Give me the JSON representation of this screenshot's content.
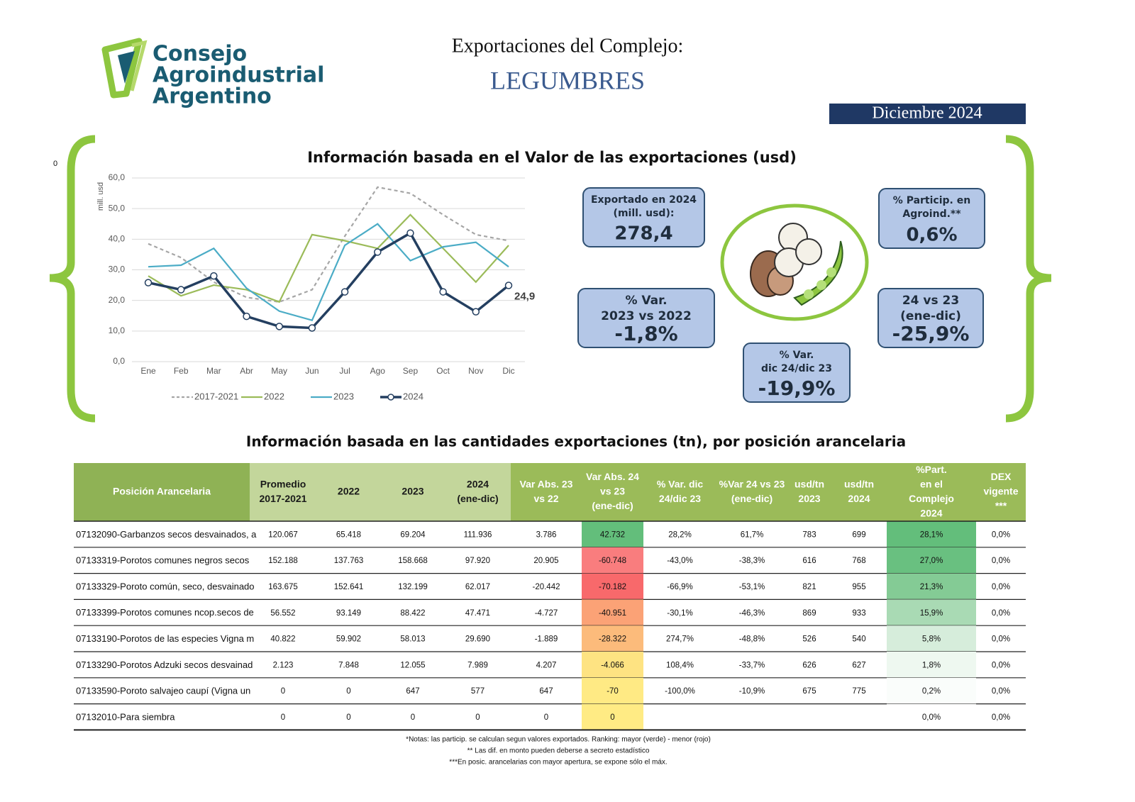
{
  "side_label": "0",
  "header": {
    "logo": [
      "Consejo",
      "Agroindustrial",
      "Argentino"
    ],
    "title": "Exportaciones del Complejo:",
    "subtitle": "LEGUMBRES",
    "date": "Diciembre 2024"
  },
  "chart_data": {
    "type": "line",
    "title": "Información basada en el Valor de las exportaciones (usd)",
    "y_label": "mill. usd",
    "categories": [
      "Ene",
      "Feb",
      "Mar",
      "Abr",
      "May",
      "Jun",
      "Jul",
      "Ago",
      "Sep",
      "Oct",
      "Nov",
      "Dic"
    ],
    "ylim": [
      0,
      60
    ],
    "yticks": [
      {
        "value": 0,
        "label": "0,0"
      },
      {
        "value": 10,
        "label": "10,0"
      },
      {
        "value": 20,
        "label": "20,0"
      },
      {
        "value": 30,
        "label": "30,0"
      },
      {
        "value": 40,
        "label": "40,0"
      },
      {
        "value": 50,
        "label": "50,0"
      },
      {
        "value": 60,
        "label": "60,0"
      }
    ],
    "grid": true,
    "legend": "bottom",
    "series": [
      {
        "name": "2017-2021",
        "color": "#a6a6a6",
        "dashed": true,
        "markers": false,
        "values": [
          38.5,
          34,
          26,
          21,
          19.5,
          23.5,
          41,
          57,
          55,
          48,
          41.5,
          39.5
        ]
      },
      {
        "name": "2022",
        "color": "#9bbb59",
        "dashed": false,
        "markers": false,
        "values": [
          28,
          21.5,
          25,
          23.5,
          19.5,
          41.5,
          39.5,
          37,
          48,
          37,
          26,
          38
        ]
      },
      {
        "name": "2023",
        "color": "#4bacc6",
        "dashed": false,
        "markers": false,
        "values": [
          31,
          31.5,
          37,
          24,
          16.5,
          13.5,
          38,
          45,
          33,
          37.5,
          39,
          31
        ]
      },
      {
        "name": "2024",
        "color": "#243f60",
        "dashed": false,
        "markers": true,
        "values": [
          25.8,
          23.5,
          28,
          14.8,
          11.5,
          11,
          22.8,
          35.8,
          42,
          22.8,
          16.3,
          24.9
        ],
        "value_labels": [
          null,
          null,
          null,
          null,
          null,
          null,
          null,
          null,
          null,
          null,
          null,
          "24,9"
        ]
      }
    ]
  },
  "kpis": [
    {
      "label": [
        "Exportado en 2024",
        "(mill. usd):"
      ],
      "value": "278,4"
    },
    {
      "label": [
        "% Particip. en",
        "Agroind.**"
      ],
      "value": "0,6%"
    },
    {
      "label": [
        "% Var.",
        "2023 vs 2022"
      ],
      "value": "-1,8%"
    },
    {
      "label": [
        "24 vs 23",
        "(ene-dic)"
      ],
      "value": "-25,9%"
    },
    {
      "label": [
        "% Var.",
        "dic 24/dic 23"
      ],
      "value": "-19,9%"
    }
  ],
  "table": {
    "title": "Información basada en las cantidades exportaciones (tn), por posición arancelaria",
    "headers": [
      [
        "Posición Arancelaria"
      ],
      [
        "Promedio",
        "2017-2021"
      ],
      [
        "2022"
      ],
      [
        "2023"
      ],
      [
        "2024",
        "(ene-dic)"
      ],
      [
        "Var Abs. 23",
        "vs 22"
      ],
      [
        "Var Abs. 24",
        "vs 23",
        "(ene-dic)"
      ],
      [
        "% Var. dic",
        "24/dic 23"
      ],
      [
        "%Var 24 vs 23",
        "(ene-dic)"
      ],
      [
        "usd/tn",
        "2023"
      ],
      [
        "usd/tn",
        "2024"
      ],
      [
        "%Part.",
        "en el",
        "Complejo",
        "2024"
      ],
      [
        "DEX",
        "vigente",
        "***"
      ]
    ],
    "rows": [
      [
        "07132090-Garbanzos secos desvainados, a",
        "120.067",
        "65.418",
        "69.204",
        "111.936",
        "3.786",
        "42.732",
        "28,2%",
        "61,7%",
        "783",
        "699",
        "28,1%",
        "0,0%"
      ],
      [
        "07133319-Porotos comunes negros secos",
        "152.188",
        "137.763",
        "158.668",
        "97.920",
        "20.905",
        "-60.748",
        "-43,0%",
        "-38,3%",
        "616",
        "768",
        "27,0%",
        "0,0%"
      ],
      [
        "07133329-Poroto común, seco, desvainado",
        "163.675",
        "152.641",
        "132.199",
        "62.017",
        "-20.442",
        "-70.182",
        "-66,9%",
        "-53,1%",
        "821",
        "955",
        "21,3%",
        "0,0%"
      ],
      [
        "07133399-Porotos comunes ncop.secos de",
        "56.552",
        "93.149",
        "88.422",
        "47.471",
        "-4.727",
        "-40.951",
        "-30,1%",
        "-46,3%",
        "869",
        "933",
        "15,9%",
        "0,0%"
      ],
      [
        "07133190-Porotos de las especies Vigna m",
        "40.822",
        "59.902",
        "58.013",
        "29.690",
        "-1.889",
        "-28.322",
        "274,7%",
        "-48,8%",
        "526",
        "540",
        "5,8%",
        "0,0%"
      ],
      [
        "07133290-Porotos Adzuki secos desvainad",
        "2.123",
        "7.848",
        "12.055",
        "7.989",
        "4.207",
        "-4.066",
        "108,4%",
        "-33,7%",
        "626",
        "627",
        "1,8%",
        "0,0%"
      ],
      [
        "07133590-Poroto salvajeo caupí (Vigna un",
        "0",
        "0",
        "647",
        "577",
        "647",
        "-70",
        "-100,0%",
        "-10,9%",
        "675",
        "775",
        "0,2%",
        "0,0%"
      ],
      [
        "07132010-Para siembra",
        "0",
        "0",
        "0",
        "0",
        "0",
        "0",
        null,
        null,
        null,
        null,
        "0,0%",
        "0,0%"
      ]
    ],
    "cell_colors": {
      "6": [
        "#63be7b",
        "#f97d7e",
        "#f8696b",
        "#fba276",
        "#fcbb7b",
        "#fee382",
        "#ffea84",
        "#ffeb84"
      ],
      "11": [
        "#63be7b",
        "#69c080",
        "#84cb95",
        "#a9dab4",
        "#d6eddb",
        "#eef8f0",
        "#fafdfb",
        "#ffffff"
      ]
    }
  },
  "notes": [
    "*Notas: las particip. se calculan segun valores exportados. Ranking: mayor (verde) - menor (rojo)",
    "** Las dif. en monto pueden deberse a secreto estadístico",
    "***En posic. arancelarias con mayor apertura, se expone sólo el máx."
  ]
}
